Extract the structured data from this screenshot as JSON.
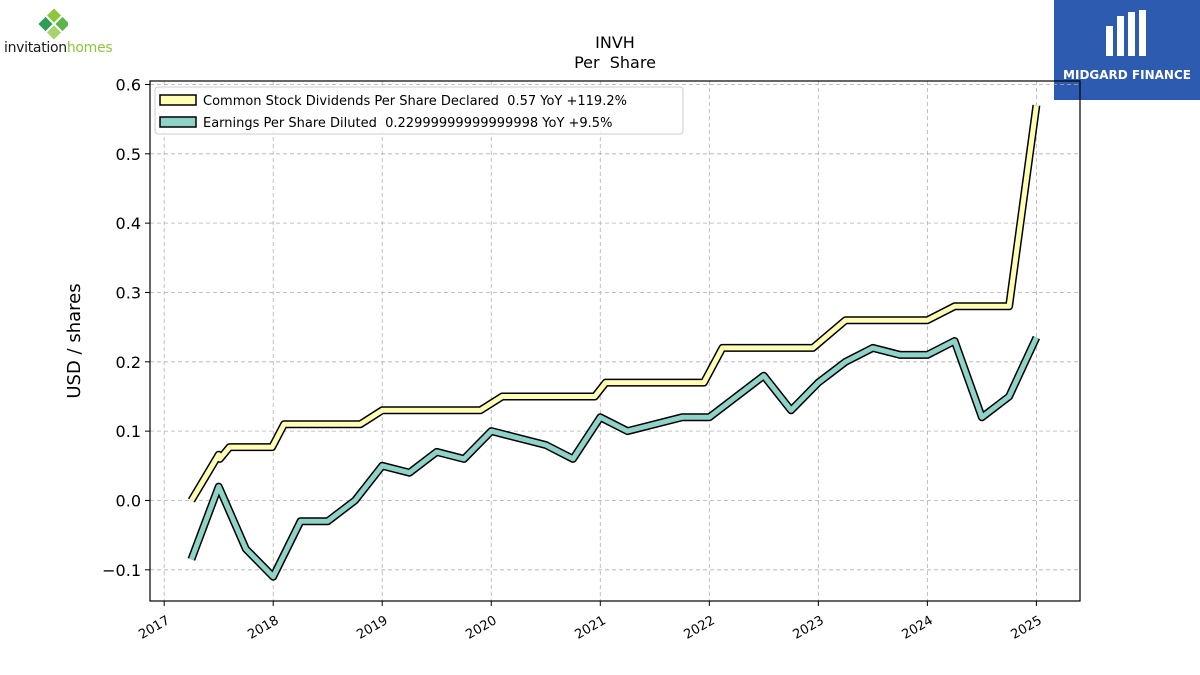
{
  "brand": {
    "company_name_main": "invitation",
    "company_name_accent": "homes",
    "watermark_text": "MIDGARD FINANCE"
  },
  "colors": {
    "dividends": "#ffffb3",
    "eps": "#8dd3c7",
    "outline": "#000000",
    "grid": "#b0b0b0",
    "brand_green": "#8cc63f",
    "watermark_bg": "#2c5bb0"
  },
  "chart_data": {
    "type": "line",
    "title": "INVH",
    "subtitle": "Per  Share",
    "ylabel": "USD / shares",
    "xlabel": "",
    "xlim": [
      2016.87,
      2025.4
    ],
    "ylim": [
      -0.145,
      0.605
    ],
    "x_ticks": [
      2017,
      2018,
      2019,
      2020,
      2021,
      2022,
      2023,
      2024,
      2025
    ],
    "x_tick_labels": [
      "2017",
      "2018",
      "2019",
      "2020",
      "2021",
      "2022",
      "2023",
      "2024",
      "2025"
    ],
    "y_ticks": [
      -0.1,
      0.0,
      0.1,
      0.2,
      0.3,
      0.4,
      0.5,
      0.6
    ],
    "y_tick_labels": [
      "−0.1",
      "0.0",
      "0.1",
      "0.2",
      "0.3",
      "0.4",
      "0.5",
      "0.6"
    ],
    "grid": true,
    "legend_position": "top-left",
    "series": [
      {
        "name": "Common Stock Dividends Per Share Declared  0.57 YoY +119.2%",
        "color": "#ffffb3",
        "points": [
          [
            2017.25,
            0.0
          ],
          [
            2017.5,
            0.066
          ],
          [
            2017.51,
            0.06
          ],
          [
            2017.6,
            0.077
          ],
          [
            2017.99,
            0.077
          ],
          [
            2018.1,
            0.11
          ],
          [
            2018.8,
            0.11
          ],
          [
            2019.0,
            0.13
          ],
          [
            2019.9,
            0.13
          ],
          [
            2020.1,
            0.15
          ],
          [
            2020.95,
            0.15
          ],
          [
            2021.05,
            0.17
          ],
          [
            2021.95,
            0.17
          ],
          [
            2022.12,
            0.22
          ],
          [
            2022.95,
            0.22
          ],
          [
            2023.25,
            0.26
          ],
          [
            2024.0,
            0.26
          ],
          [
            2024.25,
            0.28
          ],
          [
            2024.75,
            0.28
          ],
          [
            2025.0,
            0.57
          ]
        ]
      },
      {
        "name": "Earnings Per Share Diluted  0.22999999999999998 YoY +9.5%",
        "color": "#8dd3c7",
        "points": [
          [
            2017.25,
            -0.085
          ],
          [
            2017.5,
            0.02
          ],
          [
            2017.75,
            -0.07
          ],
          [
            2018.0,
            -0.11
          ],
          [
            2018.25,
            -0.03
          ],
          [
            2018.5,
            -0.03
          ],
          [
            2018.75,
            0.0
          ],
          [
            2019.0,
            0.05
          ],
          [
            2019.25,
            0.04
          ],
          [
            2019.5,
            0.07
          ],
          [
            2019.75,
            0.06
          ],
          [
            2020.0,
            0.1
          ],
          [
            2020.5,
            0.08
          ],
          [
            2020.75,
            0.06
          ],
          [
            2021.0,
            0.12
          ],
          [
            2021.25,
            0.1
          ],
          [
            2021.75,
            0.12
          ],
          [
            2022.0,
            0.12
          ],
          [
            2022.5,
            0.18
          ],
          [
            2022.75,
            0.13
          ],
          [
            2023.0,
            0.17
          ],
          [
            2023.25,
            0.2
          ],
          [
            2023.5,
            0.22
          ],
          [
            2023.75,
            0.21
          ],
          [
            2024.0,
            0.21
          ],
          [
            2024.25,
            0.23
          ],
          [
            2024.5,
            0.12
          ],
          [
            2024.75,
            0.15
          ],
          [
            2025.0,
            0.235
          ]
        ]
      }
    ]
  }
}
